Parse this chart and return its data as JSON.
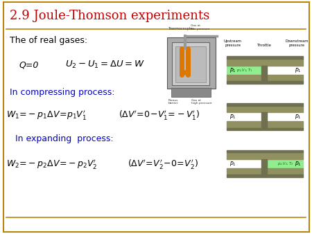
{
  "title": "2.9 Joule-Thomson experiments",
  "title_color": "#c00000",
  "title_fontsize": 13,
  "background_color": "#ffffff",
  "border_color": "#b8860b",
  "text_color_black": "#000000",
  "text_color_blue": "#0000cc",
  "line1_text": "The of real gases:",
  "line2_label": "Q=0",
  "line3_text": "In compressing process:",
  "line5_text": "In expanding  process:",
  "figsize": [
    4.5,
    3.38
  ],
  "dpi": 100
}
